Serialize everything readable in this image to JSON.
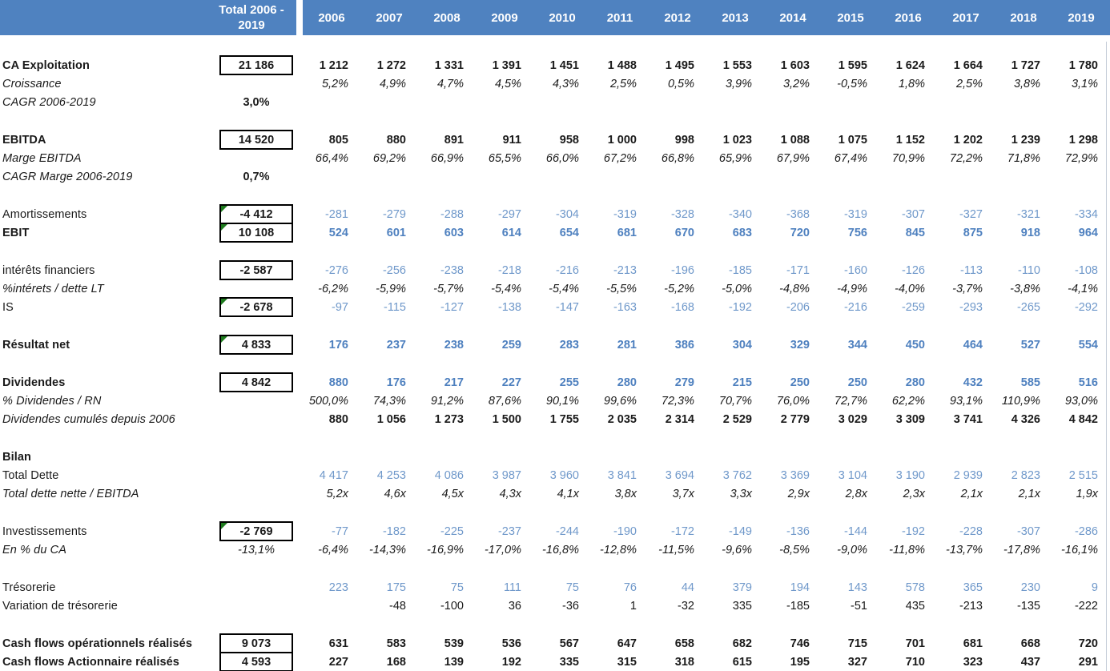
{
  "colors": {
    "header_bg": "#4f82c0",
    "value_blue": "#6f98ca",
    "value_blue_bold": "#4e80bf",
    "flag_green": "#1e7b1e"
  },
  "header": {
    "total_label_line1": "Total 2006 -",
    "total_label_line2": "2019",
    "years": [
      "2006",
      "2007",
      "2008",
      "2009",
      "2010",
      "2011",
      "2012",
      "2013",
      "2014",
      "2015",
      "2016",
      "2017",
      "2018",
      "2019"
    ]
  },
  "rows": [
    {
      "type": "data",
      "label": "CA Exploitation",
      "label_style": "bold",
      "total": "21 186",
      "total_box": true,
      "total_flag": false,
      "value_class": "bold-black",
      "values": [
        "1 212",
        "1 272",
        "1 331",
        "1 391",
        "1 451",
        "1 488",
        "1 495",
        "1 553",
        "1 603",
        "1 595",
        "1 624",
        "1 664",
        "1 727",
        "1 780"
      ]
    },
    {
      "type": "data",
      "label": "Croissance",
      "label_style": "italic",
      "total": "",
      "value_class": "italic-black",
      "values": [
        "5,2%",
        "4,9%",
        "4,7%",
        "4,5%",
        "4,3%",
        "2,5%",
        "0,5%",
        "3,9%",
        "3,2%",
        "-0,5%",
        "1,8%",
        "2,5%",
        "3,8%",
        "3,1%"
      ]
    },
    {
      "type": "data",
      "label": "CAGR 2006-2019",
      "label_style": "italic",
      "total": "3,0%",
      "total_box": false,
      "total_style": "bold",
      "value_class": "black",
      "values": [
        "",
        "",
        "",
        "",
        "",
        "",
        "",
        "",
        "",
        "",
        "",
        "",
        "",
        ""
      ]
    },
    {
      "type": "spacer"
    },
    {
      "type": "data",
      "label": "EBITDA",
      "label_style": "bold",
      "total": "14 520",
      "total_box": true,
      "total_flag": false,
      "value_class": "bold-black",
      "values": [
        "805",
        "880",
        "891",
        "911",
        "958",
        "1 000",
        "998",
        "1 023",
        "1 088",
        "1 075",
        "1 152",
        "1 202",
        "1 239",
        "1 298"
      ]
    },
    {
      "type": "data",
      "label": "Marge EBITDA",
      "label_style": "italic",
      "total": "",
      "value_class": "italic-black",
      "values": [
        "66,4%",
        "69,2%",
        "66,9%",
        "65,5%",
        "66,0%",
        "67,2%",
        "66,8%",
        "65,9%",
        "67,9%",
        "67,4%",
        "70,9%",
        "72,2%",
        "71,8%",
        "72,9%"
      ]
    },
    {
      "type": "data",
      "label": "CAGR Marge 2006-2019",
      "label_style": "italic",
      "total": "0,7%",
      "total_box": false,
      "total_style": "bold",
      "value_class": "black",
      "values": [
        "",
        "",
        "",
        "",
        "",
        "",
        "",
        "",
        "",
        "",
        "",
        "",
        "",
        ""
      ]
    },
    {
      "type": "spacer"
    },
    {
      "type": "data",
      "label": "Amortissements",
      "label_style": "normal",
      "total": "-4 412",
      "total_box": true,
      "total_flag": true,
      "value_class": "blue",
      "values": [
        "-281",
        "-279",
        "-288",
        "-297",
        "-304",
        "-319",
        "-328",
        "-340",
        "-368",
        "-319",
        "-307",
        "-327",
        "-321",
        "-334"
      ]
    },
    {
      "type": "data",
      "label": "EBIT",
      "label_style": "bold",
      "total": "10 108",
      "total_box": true,
      "total_flag": true,
      "value_class": "blue-bold",
      "values": [
        "524",
        "601",
        "603",
        "614",
        "654",
        "681",
        "670",
        "683",
        "720",
        "756",
        "845",
        "875",
        "918",
        "964"
      ]
    },
    {
      "type": "spacer"
    },
    {
      "type": "data",
      "label": "intérêts financiers",
      "label_style": "normal",
      "total": "-2 587",
      "total_box": true,
      "total_flag": false,
      "value_class": "blue",
      "values": [
        "-276",
        "-256",
        "-238",
        "-218",
        "-216",
        "-213",
        "-196",
        "-185",
        "-171",
        "-160",
        "-126",
        "-113",
        "-110",
        "-108"
      ]
    },
    {
      "type": "data",
      "label": "%intérets / dette LT",
      "label_style": "italic",
      "total": "",
      "value_class": "italic-black",
      "values": [
        "-6,2%",
        "-5,9%",
        "-5,7%",
        "-5,4%",
        "-5,4%",
        "-5,5%",
        "-5,2%",
        "-5,0%",
        "-4,8%",
        "-4,9%",
        "-4,0%",
        "-3,7%",
        "-3,8%",
        "-4,1%"
      ]
    },
    {
      "type": "data",
      "label": "IS",
      "label_style": "normal",
      "total": "-2 678",
      "total_box": true,
      "total_flag": true,
      "value_class": "blue",
      "values": [
        "-97",
        "-115",
        "-127",
        "-138",
        "-147",
        "-163",
        "-168",
        "-192",
        "-206",
        "-216",
        "-259",
        "-293",
        "-265",
        "-292"
      ]
    },
    {
      "type": "spacer"
    },
    {
      "type": "data",
      "label": "Résultat net",
      "label_style": "bold",
      "total": "4 833",
      "total_box": true,
      "total_flag": true,
      "value_class": "blue-bold",
      "values": [
        "176",
        "237",
        "238",
        "259",
        "283",
        "281",
        "386",
        "304",
        "329",
        "344",
        "450",
        "464",
        "527",
        "554"
      ]
    },
    {
      "type": "spacer"
    },
    {
      "type": "data",
      "label": "Dividendes",
      "label_style": "bold",
      "total": "4 842",
      "total_box": true,
      "total_flag": false,
      "value_class": "blue-bold",
      "values": [
        "880",
        "176",
        "217",
        "227",
        "255",
        "280",
        "279",
        "215",
        "250",
        "250",
        "280",
        "432",
        "585",
        "516"
      ]
    },
    {
      "type": "data",
      "label": "% Dividendes / RN",
      "label_style": "italic",
      "total": "",
      "value_class": "italic-black",
      "values": [
        "500,0%",
        "74,3%",
        "91,2%",
        "87,6%",
        "90,1%",
        "99,6%",
        "72,3%",
        "70,7%",
        "76,0%",
        "72,7%",
        "62,2%",
        "93,1%",
        "110,9%",
        "93,0%"
      ]
    },
    {
      "type": "data",
      "label": "Dividendes cumulés depuis 2006",
      "label_style": "italic",
      "total": "",
      "value_class": "bold-black",
      "values": [
        "880",
        "1 056",
        "1 273",
        "1 500",
        "1 755",
        "2 035",
        "2 314",
        "2 529",
        "2 779",
        "3 029",
        "3 309",
        "3 741",
        "4 326",
        "4 842"
      ]
    },
    {
      "type": "spacer"
    },
    {
      "type": "data",
      "label": "Bilan",
      "label_style": "bold",
      "total": "",
      "value_class": "black",
      "values": [
        "",
        "",
        "",
        "",
        "",
        "",
        "",
        "",
        "",
        "",
        "",
        "",
        "",
        ""
      ]
    },
    {
      "type": "data",
      "label": "Total Dette",
      "label_style": "normal",
      "total": "",
      "value_class": "blue",
      "values": [
        "4 417",
        "4 253",
        "4 086",
        "3 987",
        "3 960",
        "3 841",
        "3 694",
        "3 762",
        "3 369",
        "3 104",
        "3 190",
        "2 939",
        "2 823",
        "2 515"
      ]
    },
    {
      "type": "data",
      "label": "Total dette nette / EBITDA",
      "label_style": "italic",
      "total": "",
      "value_class": "italic-black",
      "values": [
        "5,2x",
        "4,6x",
        "4,5x",
        "4,3x",
        "4,1x",
        "3,8x",
        "3,7x",
        "3,3x",
        "2,9x",
        "2,8x",
        "2,3x",
        "2,1x",
        "2,1x",
        "1,9x"
      ]
    },
    {
      "type": "spacer"
    },
    {
      "type": "data",
      "label": "Investissements",
      "label_style": "normal",
      "total": "-2 769",
      "total_box": true,
      "total_flag": true,
      "value_class": "blue",
      "values": [
        "-77",
        "-182",
        "-225",
        "-237",
        "-244",
        "-190",
        "-172",
        "-149",
        "-136",
        "-144",
        "-192",
        "-228",
        "-307",
        "-286"
      ]
    },
    {
      "type": "data",
      "label": "En % du CA",
      "label_style": "italic",
      "total": "-13,1%",
      "total_box": false,
      "total_style": "italic",
      "value_class": "italic-black",
      "values": [
        "-6,4%",
        "-14,3%",
        "-16,9%",
        "-17,0%",
        "-16,8%",
        "-12,8%",
        "-11,5%",
        "-9,6%",
        "-8,5%",
        "-9,0%",
        "-11,8%",
        "-13,7%",
        "-17,8%",
        "-16,1%"
      ]
    },
    {
      "type": "spacer"
    },
    {
      "type": "data",
      "label": "Trésorerie",
      "label_style": "normal",
      "total": "",
      "value_class": "blue",
      "values": [
        "223",
        "175",
        "75",
        "111",
        "75",
        "76",
        "44",
        "379",
        "194",
        "143",
        "578",
        "365",
        "230",
        "9"
      ]
    },
    {
      "type": "data",
      "label": "Variation de trésorerie",
      "label_style": "normal",
      "total": "",
      "value_class": "black",
      "values": [
        "",
        "-48",
        "-100",
        "36",
        "-36",
        "1",
        "-32",
        "335",
        "-185",
        "-51",
        "435",
        "-213",
        "-135",
        "-222"
      ]
    },
    {
      "type": "spacer"
    },
    {
      "type": "data",
      "label": "Cash flows opérationnels réalisés",
      "label_style": "bold",
      "total": "9 073",
      "total_box": true,
      "total_flag": false,
      "value_class": "bold-black",
      "values": [
        "631",
        "583",
        "539",
        "536",
        "567",
        "647",
        "658",
        "682",
        "746",
        "715",
        "701",
        "681",
        "668",
        "720"
      ]
    },
    {
      "type": "data",
      "label": "Cash flows Actionnaire réalisés",
      "label_style": "bold",
      "total": "4 593",
      "total_box": true,
      "total_flag": false,
      "value_class": "bold-black",
      "values": [
        "227",
        "168",
        "139",
        "192",
        "335",
        "315",
        "318",
        "615",
        "195",
        "327",
        "710",
        "323",
        "437",
        "291"
      ]
    }
  ]
}
